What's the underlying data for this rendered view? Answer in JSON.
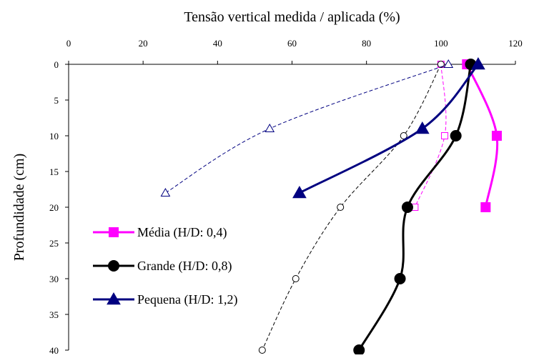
{
  "chart_data": {
    "type": "line",
    "title": "",
    "xlabel": "Tensão vertical medida / aplicada (%)",
    "ylabel": "Profundidade (cm)",
    "xlim": [
      0,
      120
    ],
    "ylim": [
      0,
      40
    ],
    "y_inverted": true,
    "x_axis_position": "top",
    "x_ticks": [
      "0",
      "20",
      "40",
      "60",
      "80",
      "100",
      "120"
    ],
    "y_ticks": [
      "0",
      "5",
      "10",
      "15",
      "20",
      "25",
      "30",
      "35",
      "40"
    ],
    "grid": false,
    "legend_position": "bottom-left",
    "series": [
      {
        "name": "Média (H/D: 0,4)",
        "color": "#FF00FF",
        "marker": "square",
        "style": "solid",
        "points": [
          {
            "x": 107,
            "y": 0
          },
          {
            "x": 115,
            "y": 10
          },
          {
            "x": 112,
            "y": 20
          }
        ]
      },
      {
        "name": "Grande (H/D: 0,8)",
        "color": "#000000",
        "marker": "circle",
        "style": "solid",
        "points": [
          {
            "x": 108,
            "y": 0
          },
          {
            "x": 104,
            "y": 10
          },
          {
            "x": 91,
            "y": 20
          },
          {
            "x": 89,
            "y": 30
          },
          {
            "x": 78,
            "y": 40
          }
        ]
      },
      {
        "name": "Pequena (H/D: 1,2)",
        "color": "#000080",
        "marker": "triangle",
        "style": "solid",
        "points": [
          {
            "x": 110,
            "y": 0
          },
          {
            "x": 95,
            "y": 9
          },
          {
            "x": 62,
            "y": 18
          }
        ]
      },
      {
        "color": "#FF00FF",
        "marker": "square-open",
        "style": "dashed",
        "points": [
          {
            "x": 100,
            "y": 0
          },
          {
            "x": 101,
            "y": 10
          },
          {
            "x": 93,
            "y": 20
          }
        ]
      },
      {
        "color": "#000000",
        "marker": "circle-open",
        "style": "dashed",
        "points": [
          {
            "x": 100,
            "y": 0
          },
          {
            "x": 90,
            "y": 10
          },
          {
            "x": 73,
            "y": 20
          },
          {
            "x": 61,
            "y": 30
          },
          {
            "x": 52,
            "y": 40
          }
        ]
      },
      {
        "color": "#000080",
        "marker": "triangle-open",
        "style": "dashed",
        "points": [
          {
            "x": 102,
            "y": 0
          },
          {
            "x": 54,
            "y": 9
          },
          {
            "x": 26,
            "y": 18
          }
        ]
      }
    ]
  }
}
